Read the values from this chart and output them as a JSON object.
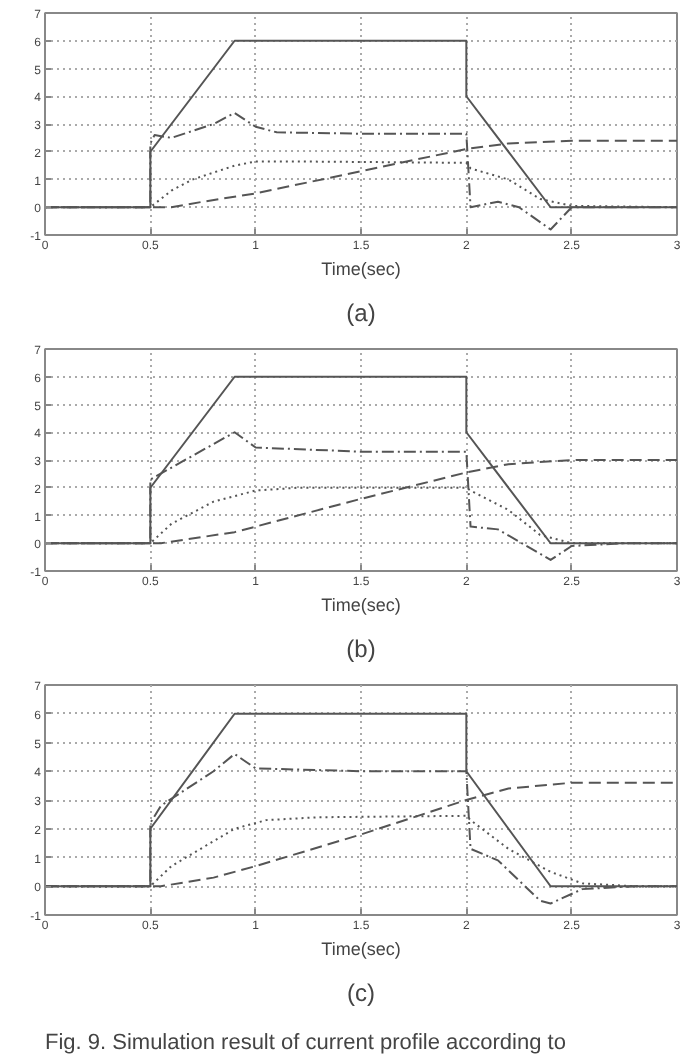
{
  "chart_data": [
    {
      "type": "line",
      "title": "(a)",
      "xlabel": "Time(sec)",
      "xlim": [
        0,
        3
      ],
      "ylim": [
        -1,
        7
      ],
      "xticks": [
        0,
        0.5,
        1,
        1.5,
        2,
        2.5,
        3
      ],
      "yticks": [
        -1,
        0,
        1,
        2,
        3,
        4,
        5,
        6,
        7
      ],
      "grid": true,
      "series": [
        {
          "color": "#555555",
          "line_style": "solid",
          "x": [
            0,
            0.5,
            0.5,
            0.9,
            2,
            2,
            2.4,
            3
          ],
          "values": [
            0,
            0,
            2,
            6,
            6,
            4,
            0,
            0
          ]
        },
        {
          "color": "#555555",
          "line_style": "dashdot",
          "x": [
            0,
            0.5,
            0.5,
            0.52,
            0.6,
            0.8,
            0.9,
            1.0,
            1.1,
            1.5,
            2.0,
            2.02,
            2.15,
            2.25,
            2.4,
            2.5,
            3
          ],
          "values": [
            0,
            0,
            2.3,
            2.6,
            2.5,
            3.0,
            3.4,
            2.9,
            2.7,
            2.65,
            2.65,
            0,
            0.2,
            0,
            -0.8,
            0,
            0
          ]
        },
        {
          "color": "#555555",
          "line_style": "dotted",
          "x": [
            0,
            0.5,
            0.6,
            0.7,
            0.9,
            1.0,
            1.2,
            2.0,
            2.02,
            2.2,
            2.35,
            2.5,
            3
          ],
          "values": [
            0,
            0,
            0.6,
            1.0,
            1.5,
            1.65,
            1.65,
            1.6,
            1.4,
            1.0,
            0.3,
            0.05,
            0
          ]
        },
        {
          "color": "#555555",
          "line_style": "dashed",
          "x": [
            0,
            0.5,
            0.6,
            0.75,
            1.0,
            1.5,
            2.0,
            2.2,
            2.5,
            3
          ],
          "values": [
            0,
            0,
            0,
            0.2,
            0.5,
            1.3,
            2.1,
            2.3,
            2.4,
            2.4
          ]
        }
      ]
    },
    {
      "type": "line",
      "title": "(b)",
      "xlabel": "Time(sec)",
      "xlim": [
        0,
        3
      ],
      "ylim": [
        -1,
        7
      ],
      "xticks": [
        0,
        0.5,
        1,
        1.5,
        2,
        2.5,
        3
      ],
      "yticks": [
        -1,
        0,
        1,
        2,
        3,
        4,
        5,
        6,
        7
      ],
      "grid": true,
      "series": [
        {
          "color": "#555555",
          "line_style": "solid",
          "x": [
            0,
            0.5,
            0.5,
            0.9,
            2,
            2,
            2.4,
            3
          ],
          "values": [
            0,
            0,
            2,
            6,
            6,
            4,
            0,
            0
          ]
        },
        {
          "color": "#555555",
          "line_style": "dashdot",
          "x": [
            0,
            0.5,
            0.5,
            0.9,
            1.0,
            1.5,
            2.0,
            2.02,
            2.15,
            2.4,
            2.5,
            2.75,
            3
          ],
          "values": [
            0,
            0,
            2.3,
            4.0,
            3.45,
            3.3,
            3.3,
            0.6,
            0.5,
            -0.6,
            -0.1,
            0,
            0
          ]
        },
        {
          "color": "#555555",
          "line_style": "dotted",
          "x": [
            0,
            0.5,
            0.6,
            0.8,
            1.0,
            1.2,
            2.0,
            2.02,
            2.2,
            2.35,
            2.5,
            3
          ],
          "values": [
            0,
            0,
            0.7,
            1.5,
            1.9,
            2.0,
            2.0,
            1.9,
            1.2,
            0.3,
            0,
            0
          ]
        },
        {
          "color": "#555555",
          "line_style": "dashed",
          "x": [
            0,
            0.5,
            0.55,
            0.9,
            1.0,
            1.5,
            2.0,
            2.2,
            2.5,
            3
          ],
          "values": [
            0,
            0,
            0,
            0.4,
            0.6,
            1.6,
            2.55,
            2.85,
            3.0,
            3.0
          ]
        }
      ]
    },
    {
      "type": "line",
      "title": "(c)",
      "xlabel": "Time(sec)",
      "xlim": [
        0,
        3
      ],
      "ylim": [
        -1,
        7
      ],
      "xticks": [
        0,
        0.5,
        1,
        1.5,
        2,
        2.5,
        3
      ],
      "yticks": [
        -1,
        0,
        1,
        2,
        3,
        4,
        5,
        6,
        7
      ],
      "grid": true,
      "annotations": [
        "Fig. 9. Simulation result of current profile according to"
      ],
      "series": [
        {
          "color": "#555555",
          "line_style": "solid",
          "x": [
            0,
            0.5,
            0.5,
            0.9,
            2,
            2,
            2.4,
            3
          ],
          "values": [
            0,
            0,
            2,
            6,
            6,
            4,
            0,
            0
          ]
        },
        {
          "color": "#555555",
          "line_style": "dashdot",
          "x": [
            0,
            0.5,
            0.5,
            0.55,
            0.8,
            0.9,
            1.0,
            1.5,
            2.0,
            2.02,
            2.15,
            2.35,
            2.4,
            2.55,
            2.8,
            3
          ],
          "values": [
            0,
            0,
            2.2,
            2.8,
            4.0,
            4.6,
            4.1,
            4.0,
            4.0,
            1.3,
            0.9,
            -0.5,
            -0.6,
            -0.1,
            0,
            0
          ]
        },
        {
          "color": "#555555",
          "line_style": "dotted",
          "x": [
            0,
            0.5,
            0.6,
            0.9,
            1.05,
            1.3,
            2.0,
            2.02,
            2.2,
            2.4,
            2.55,
            2.8,
            3
          ],
          "values": [
            0,
            0,
            0.7,
            2.0,
            2.3,
            2.4,
            2.45,
            2.3,
            1.3,
            0.5,
            0.1,
            0,
            0
          ]
        },
        {
          "color": "#555555",
          "line_style": "dashed",
          "x": [
            0,
            0.5,
            0.55,
            0.8,
            1.0,
            1.5,
            2.0,
            2.2,
            2.5,
            3
          ],
          "values": [
            0,
            0,
            0,
            0.3,
            0.7,
            1.8,
            3.0,
            3.4,
            3.6,
            3.6
          ]
        }
      ]
    }
  ]
}
